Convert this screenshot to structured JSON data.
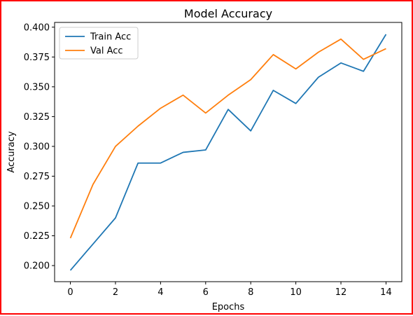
{
  "chart_data": {
    "type": "line",
    "title": "Model Accuracy",
    "xlabel": "Epochs",
    "ylabel": "Accuracy",
    "x": [
      0,
      1,
      2,
      3,
      4,
      5,
      6,
      7,
      8,
      9,
      10,
      11,
      12,
      13,
      14
    ],
    "xlim": [
      -0.7,
      14.7
    ],
    "ylim": [
      0.1865,
      0.404
    ],
    "xticks": [
      0,
      2,
      4,
      6,
      8,
      10,
      12,
      14
    ],
    "yticks": [
      0.2,
      0.225,
      0.25,
      0.275,
      0.3,
      0.325,
      0.35,
      0.375,
      0.4
    ],
    "ytick_labels": [
      "0.200",
      "0.225",
      "0.250",
      "0.275",
      "0.300",
      "0.325",
      "0.350",
      "0.375",
      "0.400"
    ],
    "legend_position": "top-left",
    "grid": false,
    "series": [
      {
        "name": "Train Acc",
        "color": "#1f77b4",
        "values": [
          0.196,
          0.218,
          0.24,
          0.286,
          0.286,
          0.295,
          0.297,
          0.331,
          0.313,
          0.347,
          0.336,
          0.358,
          0.37,
          0.363,
          0.394
        ]
      },
      {
        "name": "Val Acc",
        "color": "#ff7f0e",
        "values": [
          0.223,
          0.268,
          0.3,
          0.317,
          0.332,
          0.343,
          0.328,
          0.343,
          0.356,
          0.377,
          0.365,
          0.379,
          0.39,
          0.373,
          0.382
        ]
      }
    ]
  }
}
